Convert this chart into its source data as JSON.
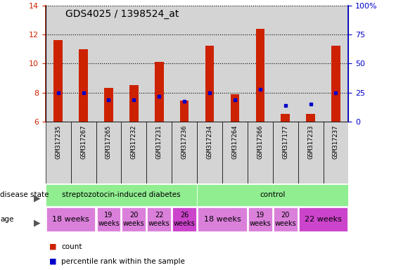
{
  "title": "GDS4025 / 1398524_at",
  "samples": [
    "GSM317235",
    "GSM317267",
    "GSM317265",
    "GSM317232",
    "GSM317231",
    "GSM317236",
    "GSM317234",
    "GSM317264",
    "GSM317266",
    "GSM317177",
    "GSM317233",
    "GSM317237"
  ],
  "red_values": [
    11.6,
    11.0,
    8.3,
    8.5,
    10.1,
    7.45,
    11.2,
    7.9,
    12.4,
    6.5,
    6.5,
    11.2
  ],
  "blue_values": [
    8.0,
    8.0,
    7.5,
    7.5,
    7.75,
    7.4,
    8.0,
    7.5,
    8.2,
    7.1,
    7.2,
    8.0
  ],
  "ylim_left": [
    6,
    14
  ],
  "ylim_right": [
    0,
    100
  ],
  "yticks_left": [
    6,
    8,
    10,
    12,
    14
  ],
  "yticks_right": [
    0,
    25,
    50,
    75,
    100
  ],
  "ytick_labels_right": [
    "0",
    "25",
    "50",
    "75",
    "100%"
  ],
  "disease_state_groups": [
    {
      "label": "streptozotocin-induced diabetes",
      "start": 0,
      "end": 6,
      "color": "#90ee90"
    },
    {
      "label": "control",
      "start": 6,
      "end": 12,
      "color": "#90ee90"
    }
  ],
  "age_groups": [
    {
      "label": "18 weeks",
      "start": 0,
      "end": 2,
      "color": "#da80da",
      "fontsize": 8
    },
    {
      "label": "19\nweeks",
      "start": 2,
      "end": 3,
      "color": "#da80da",
      "fontsize": 7
    },
    {
      "label": "20\nweeks",
      "start": 3,
      "end": 4,
      "color": "#da80da",
      "fontsize": 7
    },
    {
      "label": "22\nweeks",
      "start": 4,
      "end": 5,
      "color": "#da80da",
      "fontsize": 7
    },
    {
      "label": "26\nweeks",
      "start": 5,
      "end": 6,
      "color": "#cc44cc",
      "fontsize": 7
    },
    {
      "label": "18 weeks",
      "start": 6,
      "end": 8,
      "color": "#da80da",
      "fontsize": 8
    },
    {
      "label": "19\nweeks",
      "start": 8,
      "end": 9,
      "color": "#da80da",
      "fontsize": 7
    },
    {
      "label": "20\nweeks",
      "start": 9,
      "end": 10,
      "color": "#da80da",
      "fontsize": 7
    },
    {
      "label": "22 weeks",
      "start": 10,
      "end": 12,
      "color": "#cc44cc",
      "fontsize": 8
    }
  ],
  "bar_color": "#cc2200",
  "dot_color": "#0000cc",
  "left_tick_color": "#cc2200",
  "right_tick_color": "#0000cc",
  "bar_width": 0.35,
  "ybase": 6.0,
  "col_bg_color": "#d4d4d4",
  "plot_bg_color": "#ffffff"
}
